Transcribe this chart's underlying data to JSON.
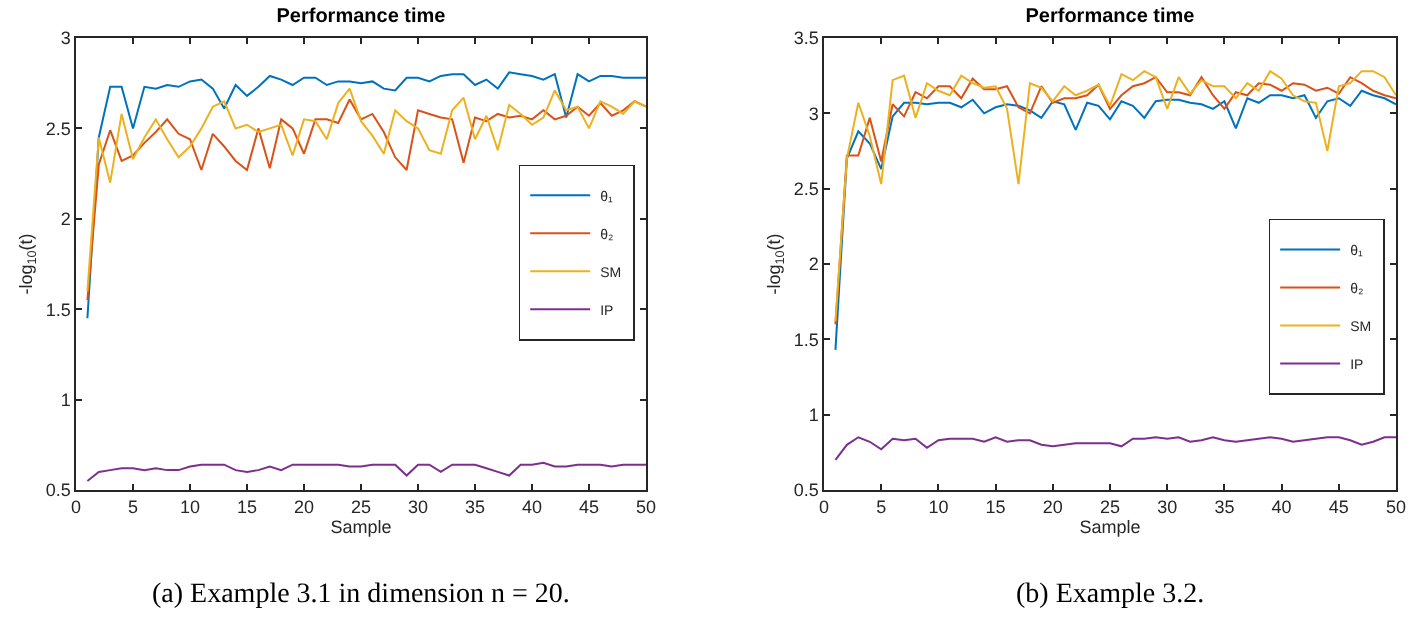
{
  "chart_data": [
    {
      "type": "line",
      "title": "Performance time",
      "xlabel": "Sample",
      "ylabel": "-log$_{10}$(t)",
      "annotations": [
        "(a) Example 3.1 in dimension n = 20."
      ],
      "x": [
        1,
        2,
        3,
        4,
        5,
        6,
        7,
        8,
        9,
        10,
        11,
        12,
        13,
        14,
        15,
        16,
        17,
        18,
        19,
        20,
        21,
        22,
        23,
        24,
        25,
        26,
        27,
        28,
        29,
        30,
        31,
        32,
        33,
        34,
        35,
        36,
        37,
        38,
        39,
        40,
        41,
        42,
        43,
        44,
        45,
        46,
        47,
        48,
        49,
        50
      ],
      "xlim": [
        0,
        50
      ],
      "xticks": [
        0,
        5,
        10,
        15,
        20,
        25,
        30,
        35,
        40,
        45,
        50
      ],
      "ylim": [
        0.5,
        3
      ],
      "yticks": [
        0.5,
        1,
        1.5,
        2,
        2.5,
        3
      ],
      "grid": false,
      "legend": "right",
      "series": [
        {
          "name": "θ₁",
          "color": "#0072bd",
          "values": [
            1.45,
            2.45,
            2.73,
            2.73,
            2.5,
            2.73,
            2.72,
            2.74,
            2.73,
            2.76,
            2.77,
            2.72,
            2.61,
            2.74,
            2.68,
            2.73,
            2.79,
            2.77,
            2.74,
            2.78,
            2.78,
            2.74,
            2.76,
            2.76,
            2.75,
            2.76,
            2.72,
            2.71,
            2.78,
            2.78,
            2.76,
            2.79,
            2.8,
            2.8,
            2.74,
            2.77,
            2.72,
            2.81,
            2.8,
            2.79,
            2.77,
            2.8,
            2.56,
            2.8,
            2.76,
            2.79,
            2.79,
            2.78,
            2.78,
            2.78
          ]
        },
        {
          "name": "θ₂",
          "color": "#d95319",
          "values": [
            1.55,
            2.3,
            2.49,
            2.32,
            2.35,
            2.42,
            2.48,
            2.55,
            2.47,
            2.44,
            2.27,
            2.47,
            2.4,
            2.32,
            2.27,
            2.5,
            2.28,
            2.55,
            2.5,
            2.36,
            2.55,
            2.55,
            2.53,
            2.66,
            2.55,
            2.58,
            2.48,
            2.34,
            2.27,
            2.6,
            2.58,
            2.56,
            2.55,
            2.31,
            2.56,
            2.54,
            2.58,
            2.56,
            2.57,
            2.55,
            2.6,
            2.55,
            2.57,
            2.62,
            2.57,
            2.64,
            2.57,
            2.6,
            2.65,
            2.62
          ]
        },
        {
          "name": "SM",
          "color": "#edb120",
          "values": [
            1.6,
            2.45,
            2.2,
            2.58,
            2.33,
            2.45,
            2.55,
            2.44,
            2.34,
            2.4,
            2.5,
            2.62,
            2.65,
            2.5,
            2.52,
            2.48,
            2.5,
            2.52,
            2.35,
            2.55,
            2.54,
            2.44,
            2.64,
            2.72,
            2.54,
            2.46,
            2.36,
            2.6,
            2.54,
            2.5,
            2.38,
            2.36,
            2.6,
            2.67,
            2.44,
            2.57,
            2.38,
            2.63,
            2.58,
            2.52,
            2.56,
            2.71,
            2.6,
            2.62,
            2.5,
            2.65,
            2.62,
            2.58,
            2.65,
            2.62
          ]
        },
        {
          "name": "IP",
          "color": "#7e2f8e",
          "values": [
            0.55,
            0.6,
            0.61,
            0.62,
            0.62,
            0.61,
            0.62,
            0.61,
            0.61,
            0.63,
            0.64,
            0.64,
            0.64,
            0.61,
            0.6,
            0.61,
            0.63,
            0.61,
            0.64,
            0.64,
            0.64,
            0.64,
            0.64,
            0.63,
            0.63,
            0.64,
            0.64,
            0.64,
            0.58,
            0.64,
            0.64,
            0.6,
            0.64,
            0.64,
            0.64,
            0.62,
            0.6,
            0.58,
            0.64,
            0.64,
            0.65,
            0.63,
            0.63,
            0.64,
            0.64,
            0.64,
            0.63,
            0.64,
            0.64,
            0.64
          ]
        }
      ]
    },
    {
      "type": "line",
      "title": "Performance time",
      "xlabel": "Sample",
      "ylabel": "-log$_{10}$(t)",
      "annotations": [
        "(b) Example 3.2."
      ],
      "x": [
        1,
        2,
        3,
        4,
        5,
        6,
        7,
        8,
        9,
        10,
        11,
        12,
        13,
        14,
        15,
        16,
        17,
        18,
        19,
        20,
        21,
        22,
        23,
        24,
        25,
        26,
        27,
        28,
        29,
        30,
        31,
        32,
        33,
        34,
        35,
        36,
        37,
        38,
        39,
        40,
        41,
        42,
        43,
        44,
        45,
        46,
        47,
        48,
        49,
        50
      ],
      "xlim": [
        0,
        50
      ],
      "xticks": [
        0,
        5,
        10,
        15,
        20,
        25,
        30,
        35,
        40,
        45,
        50
      ],
      "ylim": [
        0.5,
        3.5
      ],
      "yticks": [
        0.5,
        1,
        1.5,
        2,
        2.5,
        3,
        3.5
      ],
      "grid": false,
      "legend": "right",
      "series": [
        {
          "name": "θ₁",
          "color": "#0072bd",
          "values": [
            1.43,
            2.7,
            2.88,
            2.8,
            2.63,
            2.98,
            3.07,
            3.07,
            3.06,
            3.07,
            3.07,
            3.04,
            3.09,
            3.0,
            3.04,
            3.06,
            3.05,
            3.02,
            2.97,
            3.08,
            3.06,
            2.89,
            3.07,
            3.05,
            2.96,
            3.08,
            3.05,
            2.97,
            3.08,
            3.09,
            3.09,
            3.07,
            3.06,
            3.03,
            3.08,
            2.9,
            3.1,
            3.07,
            3.12,
            3.12,
            3.1,
            3.12,
            2.97,
            3.08,
            3.1,
            3.05,
            3.15,
            3.12,
            3.1,
            3.06
          ]
        },
        {
          "name": "θ₂",
          "color": "#d95319",
          "values": [
            1.6,
            2.72,
            2.72,
            2.97,
            2.68,
            3.06,
            2.98,
            3.14,
            3.1,
            3.18,
            3.18,
            3.1,
            3.23,
            3.16,
            3.16,
            3.18,
            3.04,
            3.0,
            3.18,
            3.07,
            3.1,
            3.1,
            3.12,
            3.19,
            3.03,
            3.12,
            3.18,
            3.2,
            3.24,
            3.14,
            3.14,
            3.12,
            3.24,
            3.12,
            3.03,
            3.14,
            3.12,
            3.2,
            3.19,
            3.15,
            3.2,
            3.19,
            3.15,
            3.17,
            3.13,
            3.24,
            3.2,
            3.15,
            3.12,
            3.1
          ]
        },
        {
          "name": "SM",
          "color": "#edb120",
          "values": [
            1.62,
            2.7,
            3.07,
            2.85,
            2.53,
            3.22,
            3.25,
            2.97,
            3.2,
            3.15,
            3.12,
            3.25,
            3.2,
            3.17,
            3.18,
            3.03,
            2.53,
            3.2,
            3.17,
            3.08,
            3.18,
            3.12,
            3.15,
            3.19,
            3.05,
            3.26,
            3.22,
            3.28,
            3.24,
            3.03,
            3.24,
            3.13,
            3.22,
            3.18,
            3.18,
            3.1,
            3.2,
            3.15,
            3.28,
            3.23,
            3.12,
            3.08,
            3.07,
            2.75,
            3.18,
            3.2,
            3.28,
            3.28,
            3.24,
            3.12
          ]
        },
        {
          "name": "IP",
          "color": "#7e2f8e",
          "values": [
            0.7,
            0.8,
            0.85,
            0.82,
            0.77,
            0.84,
            0.83,
            0.84,
            0.78,
            0.83,
            0.84,
            0.84,
            0.84,
            0.82,
            0.85,
            0.82,
            0.83,
            0.83,
            0.8,
            0.79,
            0.8,
            0.81,
            0.81,
            0.81,
            0.81,
            0.79,
            0.84,
            0.84,
            0.85,
            0.84,
            0.85,
            0.82,
            0.83,
            0.85,
            0.83,
            0.82,
            0.83,
            0.84,
            0.85,
            0.84,
            0.82,
            0.83,
            0.84,
            0.85,
            0.85,
            0.83,
            0.8,
            0.82,
            0.85,
            0.85
          ]
        }
      ]
    }
  ]
}
